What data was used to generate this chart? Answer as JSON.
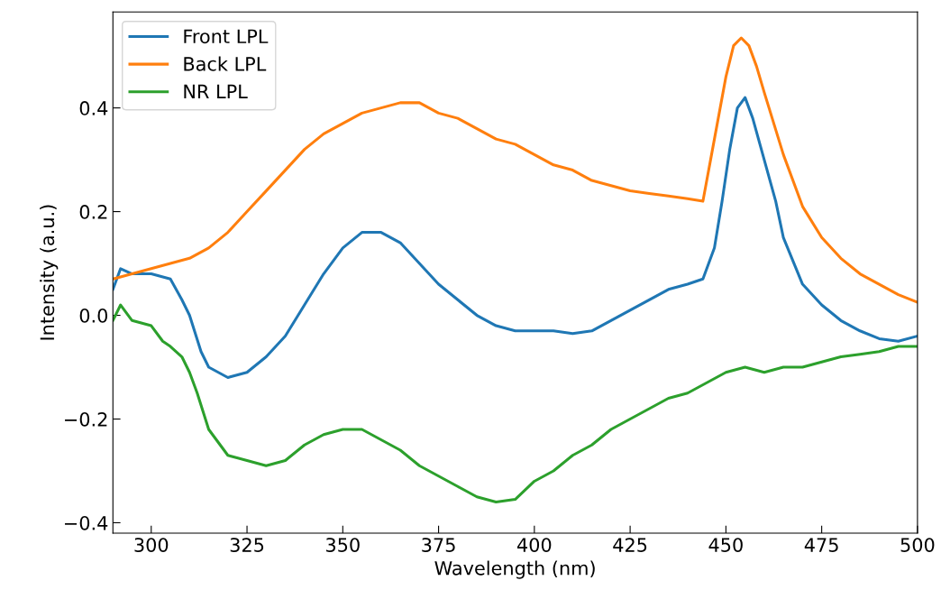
{
  "chart_data": {
    "type": "line",
    "xlabel": "Wavelength (nm)",
    "ylabel": "Intensity (a.u.)",
    "xlim": [
      290,
      500
    ],
    "xticks": [
      300,
      325,
      350,
      375,
      400,
      425,
      450,
      475,
      500
    ],
    "ylim": [
      -0.42,
      0.585
    ],
    "yticks": [
      {
        "value": -0.4,
        "label": "−0.4"
      },
      {
        "value": -0.2,
        "label": "−0.2"
      },
      {
        "value": 0.0,
        "label": "0.0"
      },
      {
        "value": 0.2,
        "label": "0.2"
      },
      {
        "value": 0.4,
        "label": "0.4"
      }
    ],
    "grid": false,
    "legend": "top left",
    "marker": "none",
    "line_style": "solid",
    "series": [
      {
        "name": "Front LPL",
        "color": "#1f77b4",
        "x": [
          290,
          292,
          295,
          300,
          305,
          308,
          310,
          313,
          315,
          320,
          325,
          330,
          335,
          340,
          345,
          350,
          355,
          360,
          365,
          370,
          375,
          380,
          385,
          390,
          395,
          400,
          405,
          410,
          415,
          420,
          425,
          430,
          435,
          440,
          444,
          447,
          449,
          451,
          453,
          455,
          457,
          460,
          463,
          465,
          470,
          475,
          480,
          485,
          490,
          495,
          500
        ],
        "values": [
          0.05,
          0.09,
          0.08,
          0.08,
          0.07,
          0.03,
          0.0,
          -0.07,
          -0.1,
          -0.12,
          -0.11,
          -0.08,
          -0.04,
          0.02,
          0.08,
          0.13,
          0.16,
          0.16,
          0.14,
          0.1,
          0.06,
          0.03,
          0.0,
          -0.02,
          -0.03,
          -0.03,
          -0.03,
          -0.035,
          -0.03,
          -0.01,
          0.01,
          0.03,
          0.05,
          0.06,
          0.07,
          0.13,
          0.22,
          0.32,
          0.4,
          0.42,
          0.38,
          0.3,
          0.22,
          0.15,
          0.06,
          0.02,
          -0.01,
          -0.03,
          -0.045,
          -0.05,
          -0.04
        ]
      },
      {
        "name": "Back LPL",
        "color": "#ff7f0e",
        "x": [
          290,
          295,
          300,
          305,
          310,
          315,
          320,
          325,
          330,
          335,
          340,
          345,
          350,
          355,
          360,
          365,
          370,
          375,
          380,
          385,
          390,
          395,
          400,
          405,
          410,
          415,
          420,
          425,
          430,
          435,
          440,
          444,
          446,
          448,
          450,
          452,
          454,
          456,
          458,
          460,
          465,
          470,
          475,
          480,
          485,
          490,
          495,
          500
        ],
        "values": [
          0.07,
          0.08,
          0.09,
          0.1,
          0.11,
          0.13,
          0.16,
          0.2,
          0.24,
          0.28,
          0.32,
          0.35,
          0.37,
          0.39,
          0.4,
          0.41,
          0.41,
          0.39,
          0.38,
          0.36,
          0.34,
          0.33,
          0.31,
          0.29,
          0.28,
          0.26,
          0.25,
          0.24,
          0.235,
          0.23,
          0.225,
          0.22,
          0.3,
          0.38,
          0.46,
          0.52,
          0.535,
          0.52,
          0.48,
          0.43,
          0.31,
          0.21,
          0.15,
          0.11,
          0.08,
          0.06,
          0.04,
          0.025
        ]
      },
      {
        "name": "NR LPL",
        "color": "#2ca02c",
        "x": [
          290,
          292,
          295,
          300,
          303,
          305,
          308,
          310,
          312,
          315,
          318,
          320,
          325,
          330,
          335,
          340,
          345,
          350,
          355,
          360,
          365,
          370,
          375,
          380,
          385,
          390,
          395,
          400,
          405,
          410,
          415,
          420,
          425,
          430,
          435,
          440,
          445,
          450,
          455,
          460,
          465,
          470,
          475,
          480,
          485,
          490,
          495,
          500
        ],
        "values": [
          -0.01,
          0.02,
          -0.01,
          -0.02,
          -0.05,
          -0.06,
          -0.08,
          -0.11,
          -0.15,
          -0.22,
          -0.25,
          -0.27,
          -0.28,
          -0.29,
          -0.28,
          -0.25,
          -0.23,
          -0.22,
          -0.22,
          -0.24,
          -0.26,
          -0.29,
          -0.31,
          -0.33,
          -0.35,
          -0.36,
          -0.355,
          -0.32,
          -0.3,
          -0.27,
          -0.25,
          -0.22,
          -0.2,
          -0.18,
          -0.16,
          -0.15,
          -0.13,
          -0.11,
          -0.1,
          -0.11,
          -0.1,
          -0.1,
          -0.09,
          -0.08,
          -0.075,
          -0.07,
          -0.06,
          -0.06
        ]
      }
    ]
  }
}
